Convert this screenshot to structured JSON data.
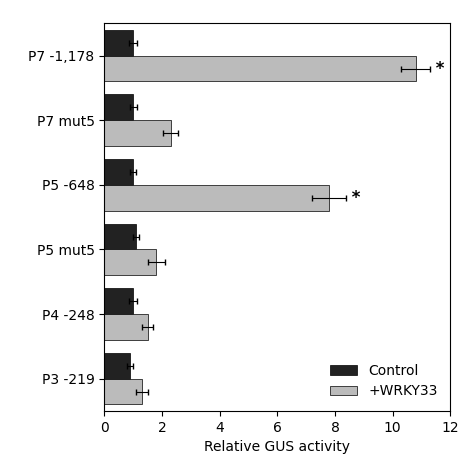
{
  "chart_data": {
    "type": "bar",
    "orientation": "horizontal",
    "categories": [
      "P7 -1,178",
      "P7 mut5",
      "P5 -648",
      "P5 mut5",
      "P4 -248",
      "P3 -219"
    ],
    "series": [
      {
        "name": "Control",
        "color": "#222222",
        "values": [
          1.0,
          1.0,
          1.0,
          1.1,
          1.0,
          0.9
        ],
        "errors": [
          0.15,
          0.12,
          0.1,
          0.12,
          0.15,
          0.1
        ]
      },
      {
        "name": "+WRKY33",
        "color": "#bbbbbb",
        "values": [
          10.8,
          2.3,
          7.8,
          1.8,
          1.5,
          1.3
        ],
        "errors": [
          0.5,
          0.25,
          0.6,
          0.3,
          0.2,
          0.2
        ],
        "annotations": [
          "*",
          null,
          "*",
          null,
          null,
          null
        ]
      }
    ],
    "xlabel": "Relative GUS activity",
    "xlim": [
      0,
      12
    ],
    "xticks": [
      0,
      2,
      4,
      6,
      8,
      10,
      12
    ],
    "legend": "lower right",
    "grid": false
  }
}
